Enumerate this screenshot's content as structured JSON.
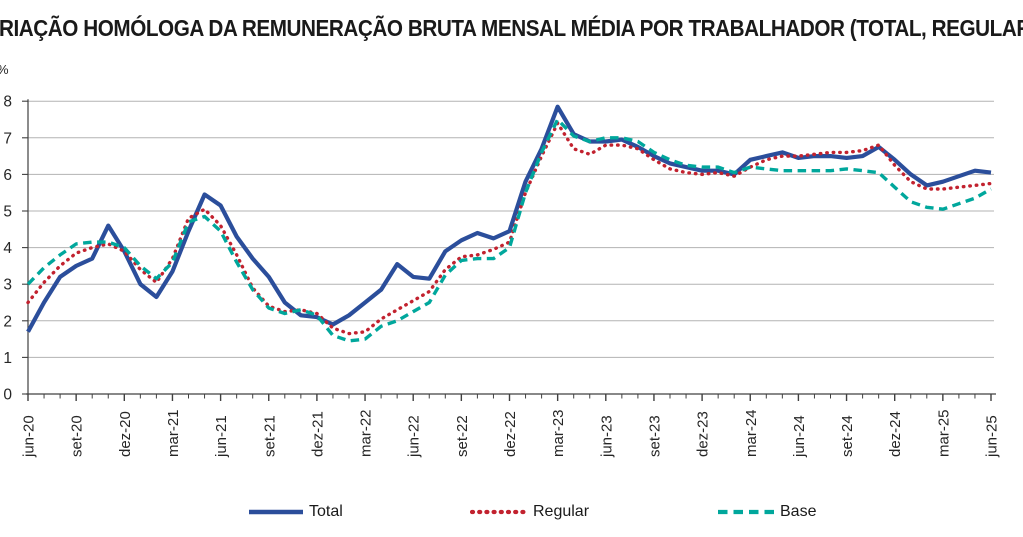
{
  "title": "RIAÇÃO HOMÓLOGA DA REMUNERAÇÃO BRUTA MENSAL MÉDIA POR TRABALHADOR (TOTAL, REGULAR E BASE)",
  "chart_data": {
    "type": "line",
    "title": "RIAÇÃO HOMÓLOGA DA REMUNERAÇÃO BRUTA MENSAL MÉDIA POR TRABALHADOR (TOTAL, REGULAR E BASE)",
    "ylabel": "%",
    "ylim": [
      0,
      8
    ],
    "y_ticks": [
      0,
      1,
      2,
      3,
      4,
      5,
      6,
      7,
      8
    ],
    "grid": "horizontal",
    "legend_position": "bottom",
    "colors": {
      "grid": "#b3b3b3",
      "axis": "#404040",
      "tick_label": "#262626"
    },
    "x": [
      "jun-20",
      "jul-20",
      "ago-20",
      "set-20",
      "out-20",
      "nov-20",
      "dez-20",
      "jan-21",
      "fev-21",
      "mar-21",
      "abr-21",
      "mai-21",
      "jun-21",
      "jul-21",
      "ago-21",
      "set-21",
      "out-21",
      "nov-21",
      "dez-21",
      "jan-22",
      "fev-22",
      "mar-22",
      "abr-22",
      "mai-22",
      "jun-22",
      "jul-22",
      "ago-22",
      "set-22",
      "out-22",
      "nov-22",
      "dez-22",
      "jan-23",
      "fev-23",
      "mar-23",
      "abr-23",
      "mai-23",
      "jun-23",
      "jul-23",
      "ago-23",
      "set-23",
      "out-23",
      "nov-23",
      "dez-23",
      "jan-24",
      "fev-24",
      "mar-24",
      "abr-24",
      "mai-24",
      "jun-24",
      "jul-24",
      "ago-24",
      "set-24",
      "out-24",
      "nov-24",
      "dez-24",
      "jan-25",
      "fev-25",
      "mar-25",
      "abr-25",
      "mai-25",
      "jun-25"
    ],
    "x_tick_labels": [
      "jun-20",
      "set-20",
      "dez-20",
      "mar-21",
      "jun-21",
      "set-21",
      "dez-21",
      "mar-22",
      "jun-22",
      "set-22",
      "dez-22",
      "mar-23",
      "jun-23",
      "set-23",
      "dez-23",
      "mar-24",
      "jun-24",
      "set-24",
      "dez-24",
      "mar-25",
      "jun-25"
    ],
    "x_tick_step": 3,
    "series": [
      {
        "name": "Total",
        "style": "solid",
        "color": "#2b4e9b",
        "values": [
          1.7,
          2.5,
          3.2,
          3.5,
          3.7,
          4.6,
          3.9,
          3.0,
          2.65,
          3.35,
          4.45,
          5.45,
          5.15,
          4.3,
          3.7,
          3.2,
          2.5,
          2.15,
          2.1,
          1.9,
          2.15,
          2.5,
          2.85,
          3.55,
          3.2,
          3.15,
          3.9,
          4.2,
          4.4,
          4.25,
          4.45,
          5.8,
          6.7,
          7.85,
          7.1,
          6.9,
          6.9,
          6.95,
          6.75,
          6.5,
          6.3,
          6.2,
          6.1,
          6.1,
          6.0,
          6.4,
          6.5,
          6.6,
          6.45,
          6.5,
          6.5,
          6.45,
          6.5,
          6.75,
          6.4,
          6.0,
          5.7,
          5.8,
          5.95,
          6.1,
          6.05
        ]
      },
      {
        "name": "Regular",
        "style": "dotted",
        "color": "#c2222f",
        "values": [
          2.5,
          3.05,
          3.5,
          3.85,
          4.0,
          4.1,
          3.9,
          3.4,
          3.05,
          3.7,
          4.8,
          5.05,
          4.6,
          3.8,
          2.9,
          2.4,
          2.25,
          2.3,
          2.2,
          1.8,
          1.65,
          1.7,
          2.05,
          2.3,
          2.55,
          2.8,
          3.4,
          3.75,
          3.8,
          3.95,
          4.15,
          5.5,
          6.5,
          7.4,
          6.7,
          6.55,
          6.8,
          6.8,
          6.7,
          6.4,
          6.15,
          6.05,
          6.0,
          6.05,
          5.95,
          6.2,
          6.4,
          6.5,
          6.5,
          6.55,
          6.6,
          6.6,
          6.65,
          6.8,
          6.25,
          5.8,
          5.6,
          5.6,
          5.65,
          5.7,
          5.75
        ]
      },
      {
        "name": "Base",
        "style": "dashed",
        "color": "#00a79c",
        "values": [
          3.0,
          3.45,
          3.8,
          4.1,
          4.15,
          4.15,
          4.0,
          3.5,
          3.15,
          3.6,
          4.7,
          4.85,
          4.45,
          3.6,
          2.85,
          2.35,
          2.2,
          2.3,
          2.15,
          1.6,
          1.45,
          1.5,
          1.85,
          2.0,
          2.25,
          2.5,
          3.25,
          3.65,
          3.7,
          3.7,
          4.0,
          5.5,
          6.6,
          7.5,
          7.05,
          6.9,
          7.0,
          7.0,
          6.9,
          6.6,
          6.4,
          6.25,
          6.2,
          6.2,
          6.05,
          6.2,
          6.15,
          6.1,
          6.1,
          6.1,
          6.1,
          6.15,
          6.1,
          6.05,
          5.65,
          5.25,
          5.1,
          5.05,
          5.2,
          5.35,
          5.6
        ]
      }
    ]
  }
}
